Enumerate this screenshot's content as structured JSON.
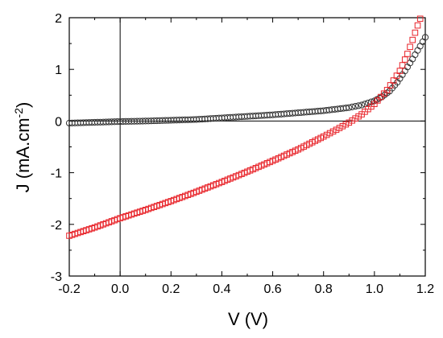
{
  "chart_data": {
    "type": "scatter",
    "xlabel": "V (V)",
    "ylabel": {
      "main": "J (mA.cm",
      "sup": "-2",
      "close": ")"
    },
    "xlim": [
      -0.2,
      1.2
    ],
    "ylim": [
      -3,
      2
    ],
    "xticks": [
      "-0.2",
      "0.0",
      "0.2",
      "0.4",
      "0.6",
      "0.8",
      "1.0",
      "1.2"
    ],
    "yticks": [
      "-3",
      "-2",
      "-1",
      "0",
      "1",
      "2"
    ],
    "grid": false,
    "reference_lines": {
      "x": 0,
      "y": 0
    },
    "series": [
      {
        "marker": "circle",
        "color": "#333333",
        "points": [
          [
            -0.2,
            -0.04
          ],
          [
            -0.1,
            -0.025
          ],
          [
            0.0,
            -0.01
          ],
          [
            0.1,
            0.0
          ],
          [
            0.2,
            0.015
          ],
          [
            0.3,
            0.03
          ],
          [
            0.4,
            0.06
          ],
          [
            0.5,
            0.09
          ],
          [
            0.6,
            0.12
          ],
          [
            0.7,
            0.16
          ],
          [
            0.8,
            0.2
          ],
          [
            0.9,
            0.26
          ],
          [
            0.95,
            0.31
          ],
          [
            1.0,
            0.39
          ],
          [
            1.03,
            0.47
          ],
          [
            1.06,
            0.58
          ],
          [
            1.09,
            0.75
          ],
          [
            1.12,
            0.97
          ],
          [
            1.15,
            1.2
          ],
          [
            1.18,
            1.45
          ],
          [
            1.2,
            1.62
          ]
        ]
      },
      {
        "marker": "square",
        "color": "#e8242a",
        "points": [
          [
            -0.2,
            -2.22
          ],
          [
            -0.1,
            -2.06
          ],
          [
            0.0,
            -1.88
          ],
          [
            0.1,
            -1.72
          ],
          [
            0.2,
            -1.55
          ],
          [
            0.3,
            -1.37
          ],
          [
            0.4,
            -1.18
          ],
          [
            0.5,
            -0.98
          ],
          [
            0.6,
            -0.77
          ],
          [
            0.7,
            -0.55
          ],
          [
            0.8,
            -0.3
          ],
          [
            0.85,
            -0.17
          ],
          [
            0.9,
            -0.03
          ],
          [
            0.95,
            0.13
          ],
          [
            1.0,
            0.33
          ],
          [
            1.05,
            0.6
          ],
          [
            1.1,
            0.97
          ],
          [
            1.13,
            1.3
          ],
          [
            1.15,
            1.57
          ],
          [
            1.17,
            1.85
          ],
          [
            1.18,
            1.98
          ]
        ]
      }
    ]
  }
}
